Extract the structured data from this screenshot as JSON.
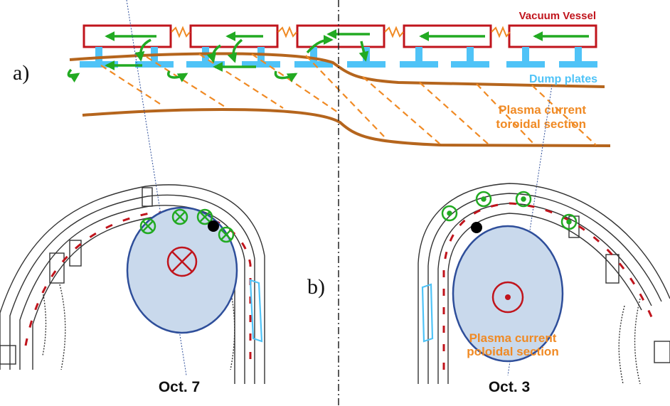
{
  "panels": {
    "a": "a)",
    "b": "b)"
  },
  "labels": {
    "vacuum_vessel": "Vacuum Vessel",
    "dump_plates": "Dump plates",
    "toroidal_line1": "Plasma current",
    "toroidal_line2": "toroidal section",
    "poloidal_line1": "Plasma current",
    "poloidal_line2": "poloidal section",
    "left_date": "Oct. 7",
    "right_date": "Oct. 3"
  },
  "colors": {
    "vessel": "#c0141c",
    "dump_plates": "#4fc3f7",
    "plasma_boundary": "#b5651d",
    "current_hatch": "#f08a24",
    "current_arrows": "#22aa22",
    "plasma_fill": "#c9d9ec",
    "plasma_edge": "#2e4e9a",
    "structure": "#333333",
    "black_dot": "#000000"
  },
  "icons": {
    "into_page": "circle-cross-icon",
    "out_of_page": "circle-dot-icon"
  }
}
